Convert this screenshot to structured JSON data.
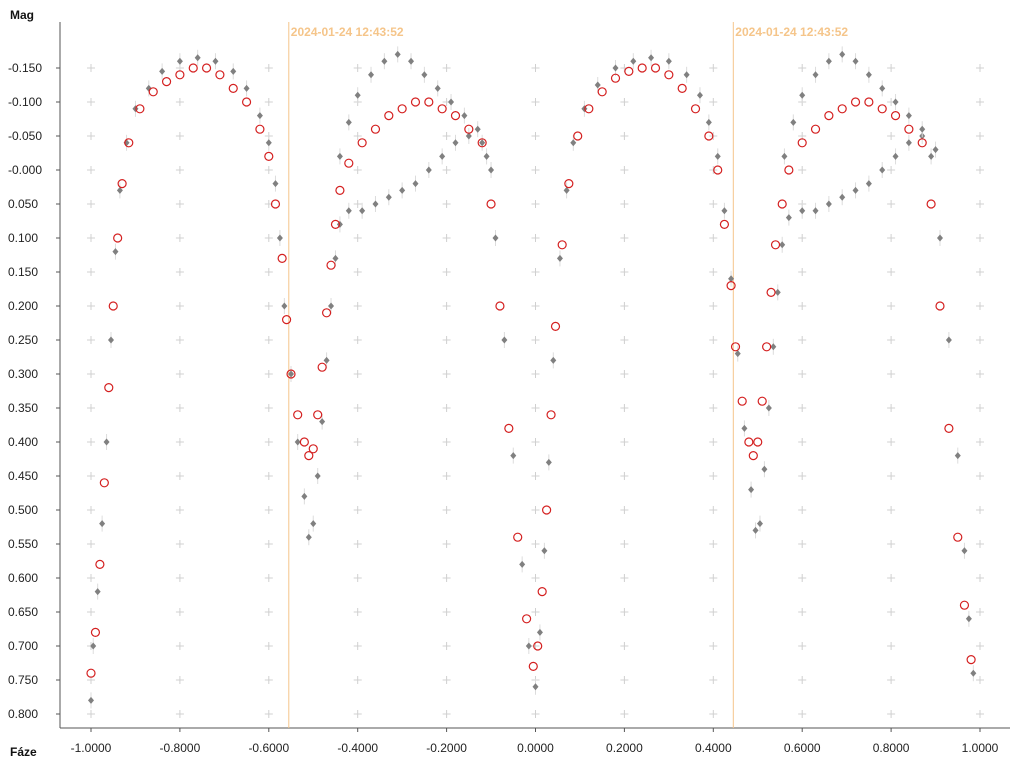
{
  "chart_data": {
    "type": "scatter",
    "ylabel": "Mag",
    "xlabel": "Fáze",
    "xlim": [
      -1.05,
      1.05
    ],
    "ylim": [
      -0.215,
      0.81
    ],
    "y_inverted": true,
    "grid": "plus-markers",
    "x_ticks": [
      "-1.0000",
      "-0.8000",
      "-0.6000",
      "-0.4000",
      "-0.2000",
      "0.0000",
      "0.2000",
      "0.4000",
      "0.6000",
      "0.8000",
      "1.0000"
    ],
    "y_ticks": [
      "-0.150",
      "-0.100",
      "-0.050",
      "-0.000",
      "0.050",
      "0.100",
      "0.150",
      "0.200",
      "0.250",
      "0.300",
      "0.350",
      "0.400",
      "0.450",
      "0.500",
      "0.550",
      "0.600",
      "0.650",
      "0.700",
      "0.750",
      "0.800"
    ],
    "markers": [
      {
        "x": -0.555,
        "label": "2024-01-24 12:43:52"
      },
      {
        "x": 0.445,
        "label": "2024-01-24 12:43:52"
      }
    ],
    "series": [
      {
        "color": "#808080",
        "marker": "filled-diamond",
        "points": [
          [
            -1.0,
            0.78
          ],
          [
            -0.995,
            0.7
          ],
          [
            -0.985,
            0.62
          ],
          [
            -0.975,
            0.52
          ],
          [
            -0.965,
            0.4
          ],
          [
            -0.955,
            0.25
          ],
          [
            -0.945,
            0.12
          ],
          [
            -0.935,
            0.03
          ],
          [
            -0.92,
            -0.04
          ],
          [
            -0.9,
            -0.09
          ],
          [
            -0.87,
            -0.12
          ],
          [
            -0.84,
            -0.145
          ],
          [
            -0.8,
            -0.16
          ],
          [
            -0.76,
            -0.165
          ],
          [
            -0.72,
            -0.16
          ],
          [
            -0.68,
            -0.145
          ],
          [
            -0.65,
            -0.12
          ],
          [
            -0.62,
            -0.08
          ],
          [
            -0.6,
            -0.04
          ],
          [
            -0.585,
            0.02
          ],
          [
            -0.575,
            0.1
          ],
          [
            -0.565,
            0.2
          ],
          [
            -0.55,
            0.3
          ],
          [
            -0.535,
            0.4
          ],
          [
            -0.52,
            0.48
          ],
          [
            -0.51,
            0.54
          ],
          [
            -0.5,
            0.52
          ],
          [
            -0.49,
            0.45
          ],
          [
            -0.48,
            0.37
          ],
          [
            -0.47,
            0.28
          ],
          [
            -0.46,
            0.2
          ],
          [
            -0.45,
            0.13
          ],
          [
            -0.44,
            0.08
          ],
          [
            -0.42,
            0.06
          ],
          [
            -0.39,
            0.06
          ],
          [
            -0.36,
            0.05
          ],
          [
            -0.33,
            0.04
          ],
          [
            -0.3,
            0.03
          ],
          [
            -0.27,
            0.02
          ],
          [
            -0.24,
            0.0
          ],
          [
            -0.21,
            -0.02
          ],
          [
            -0.18,
            -0.04
          ],
          [
            -0.15,
            -0.05
          ],
          [
            -0.12,
            -0.04
          ],
          [
            -0.1,
            0.0
          ],
          [
            -0.44,
            -0.02
          ],
          [
            -0.42,
            -0.07
          ],
          [
            -0.4,
            -0.11
          ],
          [
            -0.37,
            -0.14
          ],
          [
            -0.34,
            -0.16
          ],
          [
            -0.31,
            -0.17
          ],
          [
            -0.28,
            -0.16
          ],
          [
            -0.25,
            -0.14
          ],
          [
            -0.22,
            -0.12
          ],
          [
            -0.19,
            -0.1
          ],
          [
            -0.16,
            -0.08
          ],
          [
            -0.13,
            -0.06
          ],
          [
            -0.11,
            -0.02
          ],
          [
            -0.09,
            0.1
          ],
          [
            -0.07,
            0.25
          ],
          [
            -0.05,
            0.42
          ],
          [
            -0.03,
            0.58
          ],
          [
            -0.015,
            0.7
          ],
          [
            0.0,
            0.76
          ],
          [
            0.01,
            0.68
          ],
          [
            0.02,
            0.56
          ],
          [
            0.03,
            0.43
          ],
          [
            0.04,
            0.28
          ],
          [
            0.055,
            0.13
          ],
          [
            0.07,
            0.03
          ],
          [
            0.085,
            -0.04
          ],
          [
            0.11,
            -0.09
          ],
          [
            0.14,
            -0.125
          ],
          [
            0.18,
            -0.15
          ],
          [
            0.22,
            -0.16
          ],
          [
            0.26,
            -0.165
          ],
          [
            0.3,
            -0.16
          ],
          [
            0.34,
            -0.14
          ],
          [
            0.37,
            -0.11
          ],
          [
            0.39,
            -0.07
          ],
          [
            0.41,
            -0.02
          ],
          [
            0.425,
            0.06
          ],
          [
            0.44,
            0.16
          ],
          [
            0.455,
            0.27
          ],
          [
            0.47,
            0.38
          ],
          [
            0.485,
            0.47
          ],
          [
            0.495,
            0.53
          ],
          [
            0.505,
            0.52
          ],
          [
            0.515,
            0.44
          ],
          [
            0.525,
            0.35
          ],
          [
            0.535,
            0.26
          ],
          [
            0.545,
            0.18
          ],
          [
            0.555,
            0.11
          ],
          [
            0.57,
            0.07
          ],
          [
            0.6,
            0.06
          ],
          [
            0.63,
            0.06
          ],
          [
            0.66,
            0.05
          ],
          [
            0.69,
            0.04
          ],
          [
            0.72,
            0.03
          ],
          [
            0.75,
            0.02
          ],
          [
            0.78,
            0.0
          ],
          [
            0.81,
            -0.02
          ],
          [
            0.84,
            -0.04
          ],
          [
            0.87,
            -0.05
          ],
          [
            0.9,
            -0.03
          ],
          [
            0.56,
            -0.02
          ],
          [
            0.58,
            -0.07
          ],
          [
            0.6,
            -0.11
          ],
          [
            0.63,
            -0.14
          ],
          [
            0.66,
            -0.16
          ],
          [
            0.69,
            -0.17
          ],
          [
            0.72,
            -0.16
          ],
          [
            0.75,
            -0.14
          ],
          [
            0.78,
            -0.12
          ],
          [
            0.81,
            -0.1
          ],
          [
            0.84,
            -0.08
          ],
          [
            0.87,
            -0.06
          ],
          [
            0.89,
            -0.02
          ],
          [
            0.91,
            0.1
          ],
          [
            0.93,
            0.25
          ],
          [
            0.95,
            0.42
          ],
          [
            0.965,
            0.56
          ],
          [
            0.975,
            0.66
          ],
          [
            0.985,
            0.74
          ]
        ]
      },
      {
        "color": "#d42020",
        "marker": "open-circle",
        "points": [
          [
            -1.0,
            0.74
          ],
          [
            -0.99,
            0.68
          ],
          [
            -0.98,
            0.58
          ],
          [
            -0.97,
            0.46
          ],
          [
            -0.96,
            0.32
          ],
          [
            -0.95,
            0.2
          ],
          [
            -0.94,
            0.1
          ],
          [
            -0.93,
            0.02
          ],
          [
            -0.915,
            -0.04
          ],
          [
            -0.89,
            -0.09
          ],
          [
            -0.86,
            -0.115
          ],
          [
            -0.83,
            -0.13
          ],
          [
            -0.8,
            -0.14
          ],
          [
            -0.77,
            -0.15
          ],
          [
            -0.74,
            -0.15
          ],
          [
            -0.71,
            -0.14
          ],
          [
            -0.68,
            -0.12
          ],
          [
            -0.65,
            -0.1
          ],
          [
            -0.62,
            -0.06
          ],
          [
            -0.6,
            -0.02
          ],
          [
            -0.585,
            0.05
          ],
          [
            -0.57,
            0.13
          ],
          [
            -0.56,
            0.22
          ],
          [
            -0.55,
            0.3
          ],
          [
            -0.535,
            0.36
          ],
          [
            -0.52,
            0.4
          ],
          [
            -0.51,
            0.42
          ],
          [
            -0.5,
            0.41
          ],
          [
            -0.49,
            0.36
          ],
          [
            -0.48,
            0.29
          ],
          [
            -0.47,
            0.21
          ],
          [
            -0.46,
            0.14
          ],
          [
            -0.45,
            0.08
          ],
          [
            -0.44,
            0.03
          ],
          [
            -0.42,
            -0.01
          ],
          [
            -0.39,
            -0.04
          ],
          [
            -0.36,
            -0.06
          ],
          [
            -0.33,
            -0.08
          ],
          [
            -0.3,
            -0.09
          ],
          [
            -0.27,
            -0.1
          ],
          [
            -0.24,
            -0.1
          ],
          [
            -0.21,
            -0.09
          ],
          [
            -0.18,
            -0.08
          ],
          [
            -0.15,
            -0.06
          ],
          [
            -0.12,
            -0.04
          ],
          [
            -0.1,
            0.05
          ],
          [
            -0.08,
            0.2
          ],
          [
            -0.06,
            0.38
          ],
          [
            -0.04,
            0.54
          ],
          [
            -0.02,
            0.66
          ],
          [
            -0.005,
            0.73
          ],
          [
            0.005,
            0.7
          ],
          [
            0.015,
            0.62
          ],
          [
            0.025,
            0.5
          ],
          [
            0.035,
            0.36
          ],
          [
            0.045,
            0.23
          ],
          [
            0.06,
            0.11
          ],
          [
            0.075,
            0.02
          ],
          [
            0.095,
            -0.05
          ],
          [
            0.12,
            -0.09
          ],
          [
            0.15,
            -0.115
          ],
          [
            0.18,
            -0.135
          ],
          [
            0.21,
            -0.145
          ],
          [
            0.24,
            -0.15
          ],
          [
            0.27,
            -0.15
          ],
          [
            0.3,
            -0.14
          ],
          [
            0.33,
            -0.12
          ],
          [
            0.36,
            -0.09
          ],
          [
            0.39,
            -0.05
          ],
          [
            0.41,
            0.0
          ],
          [
            0.425,
            0.08
          ],
          [
            0.44,
            0.17
          ],
          [
            0.45,
            0.26
          ],
          [
            0.465,
            0.34
          ],
          [
            0.48,
            0.4
          ],
          [
            0.49,
            0.42
          ],
          [
            0.5,
            0.4
          ],
          [
            0.51,
            0.34
          ],
          [
            0.52,
            0.26
          ],
          [
            0.53,
            0.18
          ],
          [
            0.54,
            0.11
          ],
          [
            0.555,
            0.05
          ],
          [
            0.57,
            0.0
          ],
          [
            0.6,
            -0.04
          ],
          [
            0.63,
            -0.06
          ],
          [
            0.66,
            -0.08
          ],
          [
            0.69,
            -0.09
          ],
          [
            0.72,
            -0.1
          ],
          [
            0.75,
            -0.1
          ],
          [
            0.78,
            -0.09
          ],
          [
            0.81,
            -0.08
          ],
          [
            0.84,
            -0.06
          ],
          [
            0.87,
            -0.04
          ],
          [
            0.89,
            0.05
          ],
          [
            0.91,
            0.2
          ],
          [
            0.93,
            0.38
          ],
          [
            0.95,
            0.54
          ],
          [
            0.965,
            0.64
          ],
          [
            0.98,
            0.72
          ]
        ]
      }
    ]
  }
}
